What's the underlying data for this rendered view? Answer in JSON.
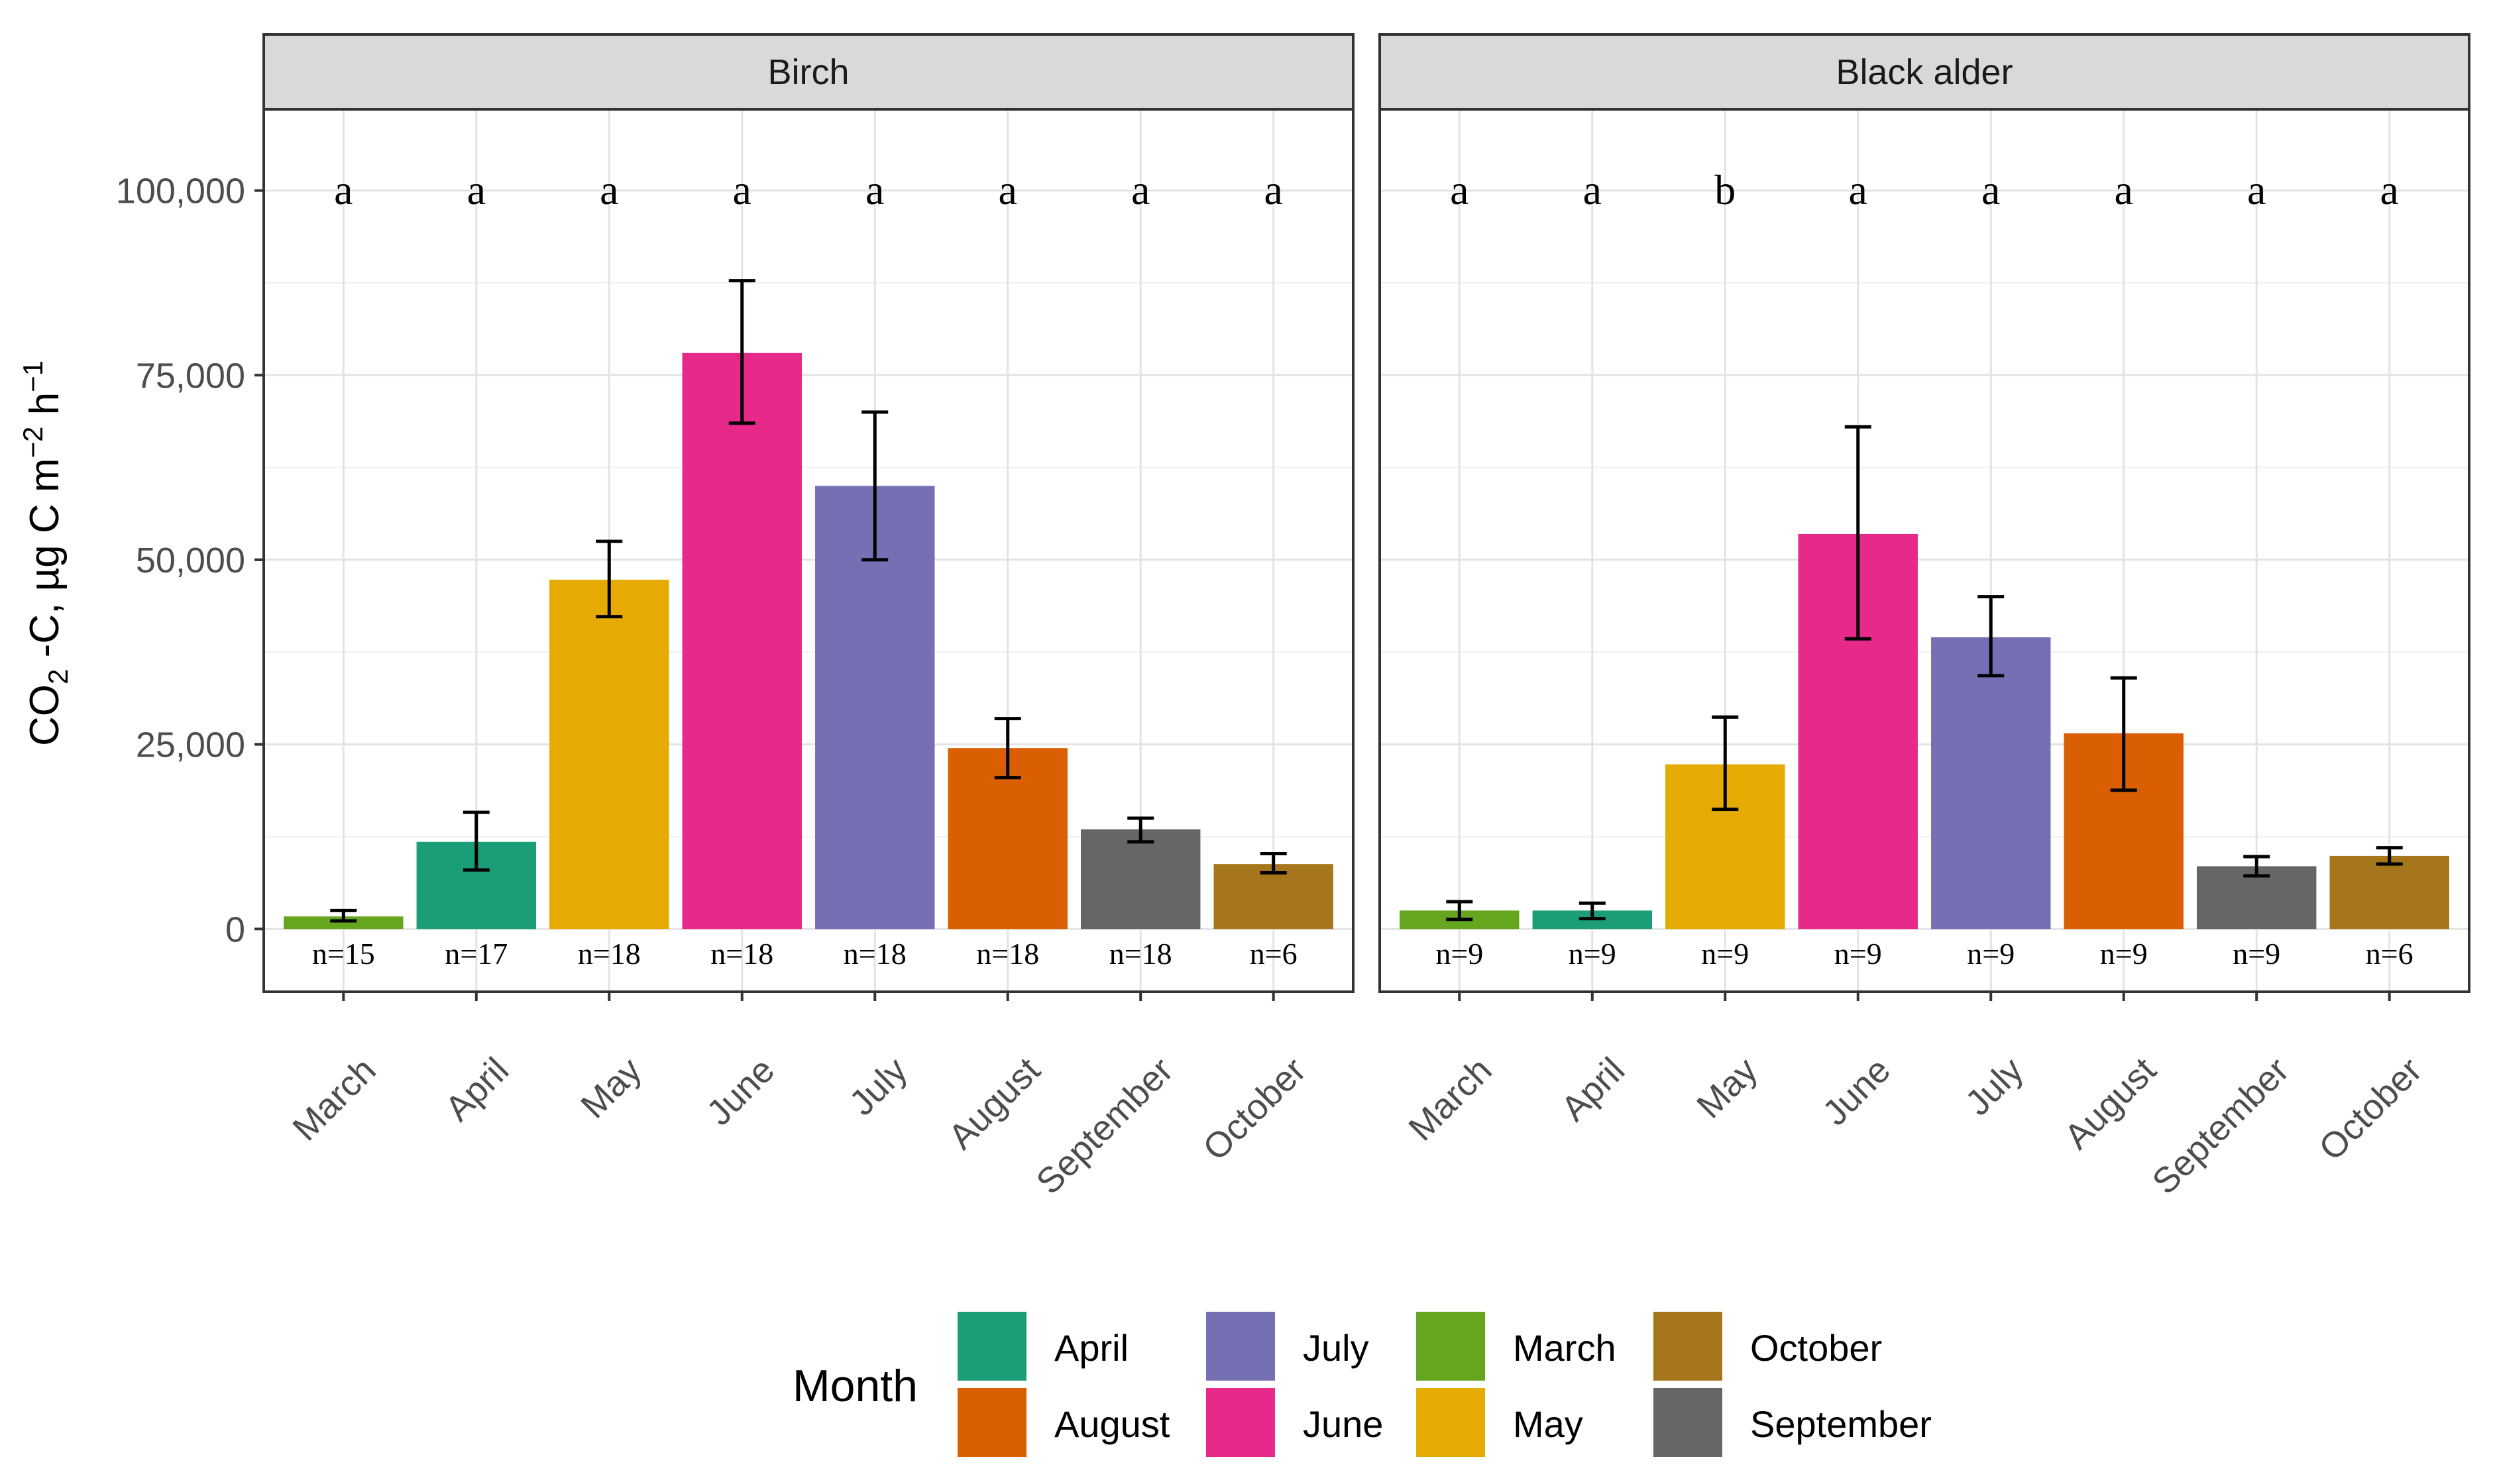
{
  "chart_data": {
    "type": "bar",
    "facet_titles": [
      "Birch",
      "Black alder"
    ],
    "categories": [
      "March",
      "April",
      "May",
      "June",
      "July",
      "August",
      "September",
      "October"
    ],
    "ylabel": "CO2 -C, µg C m-2 h-1",
    "ylabel_parts": {
      "a": "CO",
      "sub": "2",
      "b": " -C, µg C m",
      "sup1": "−2",
      "c": " h",
      "sup2": "−1"
    },
    "ylim": [
      -8500,
      111000
    ],
    "yticks": [
      0,
      25000,
      50000,
      75000,
      100000
    ],
    "ytick_labels": [
      "0",
      "25,000",
      "50,000",
      "75,000",
      "100,000"
    ],
    "grid": true,
    "legend_title": "Month",
    "legend_position": "bottom",
    "legend_entries": [
      {
        "label": "April",
        "color": "#1b9e77"
      },
      {
        "label": "August",
        "color": "#d95f02"
      },
      {
        "label": "July",
        "color": "#7570b3"
      },
      {
        "label": "June",
        "color": "#e7298a"
      },
      {
        "label": "March",
        "color": "#66a61e"
      },
      {
        "label": "May",
        "color": "#e6ab02"
      },
      {
        "label": "October",
        "color": "#a6761d"
      },
      {
        "label": "September",
        "color": "#666666"
      }
    ],
    "month_colors": {
      "March": "#66a61e",
      "April": "#1b9e77",
      "May": "#e6ab02",
      "June": "#e7298a",
      "July": "#7570b3",
      "August": "#d95f02",
      "September": "#666666",
      "October": "#a6761d"
    },
    "series": [
      {
        "name": "Birch",
        "values": [
          1700,
          11800,
          47300,
          78000,
          60000,
          24500,
          13500,
          8800
        ],
        "err_low": [
          1100,
          8000,
          42300,
          68500,
          50000,
          20500,
          11800,
          7600
        ],
        "err_high": [
          2500,
          15800,
          52500,
          87800,
          70000,
          28500,
          15000,
          10200
        ],
        "letters": [
          "a",
          "a",
          "a",
          "a",
          "a",
          "a",
          "a",
          "a"
        ],
        "n_labels": [
          "n=15",
          "n=17",
          "n=18",
          "n=18",
          "n=18",
          "n=18",
          "n=18",
          "n=6"
        ]
      },
      {
        "name": "Black alder",
        "values": [
          2500,
          2500,
          22300,
          53500,
          39500,
          26500,
          8500,
          9900
        ],
        "err_low": [
          1300,
          1400,
          16200,
          39300,
          34300,
          18800,
          7200,
          8800
        ],
        "err_high": [
          3700,
          3500,
          28700,
          68000,
          45000,
          34000,
          9800,
          11000
        ],
        "letters": [
          "a",
          "a",
          "b",
          "a",
          "a",
          "a",
          "a",
          "a"
        ],
        "n_labels": [
          "n=9",
          "n=9",
          "n=9",
          "n=9",
          "n=9",
          "n=9",
          "n=9",
          "n=6"
        ]
      }
    ]
  }
}
